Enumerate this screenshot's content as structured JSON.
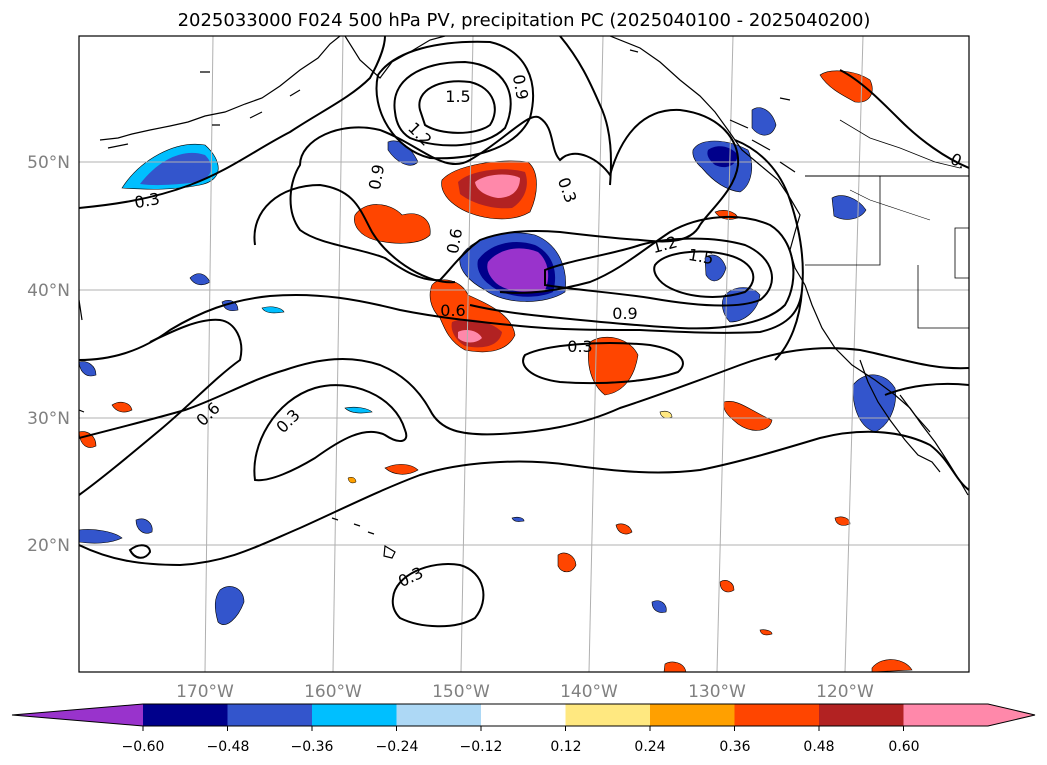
{
  "title": "2025033000 F024 500 hPa PV, precipitation PC (2025040100 - 2025040200)",
  "lat_labels": [
    "50°N",
    "40°N",
    "30°N",
    "20°N"
  ],
  "lon_labels": [
    "170°W",
    "160°W",
    "150°W",
    "140°W",
    "130°W",
    "120°W"
  ],
  "contour_labels": [
    "1.5",
    "0.9",
    "1.2",
    "0.9",
    "0.6",
    "0.3",
    "0.3",
    "1.2",
    "1.5",
    "0.6",
    "0.9",
    "0.3",
    "0.6",
    "0.3",
    "0.3",
    "0."
  ],
  "colorbar": {
    "ticks": [
      "−0.60",
      "−0.48",
      "−0.36",
      "−0.24",
      "−0.12",
      "0.12",
      "0.24",
      "0.36",
      "0.48",
      "0.60"
    ],
    "colors": [
      "#9933cc",
      "#00008b",
      "#3355cc",
      "#00bfff",
      "#add8f5",
      "#ffffff",
      "#ffe880",
      "#ffa000",
      "#ff4500",
      "#b22222",
      "#ff88aa",
      "#ff88aa"
    ]
  },
  "colors": {
    "contour": "#000000",
    "grid": "#b0b0b0",
    "coast": "#000000"
  }
}
